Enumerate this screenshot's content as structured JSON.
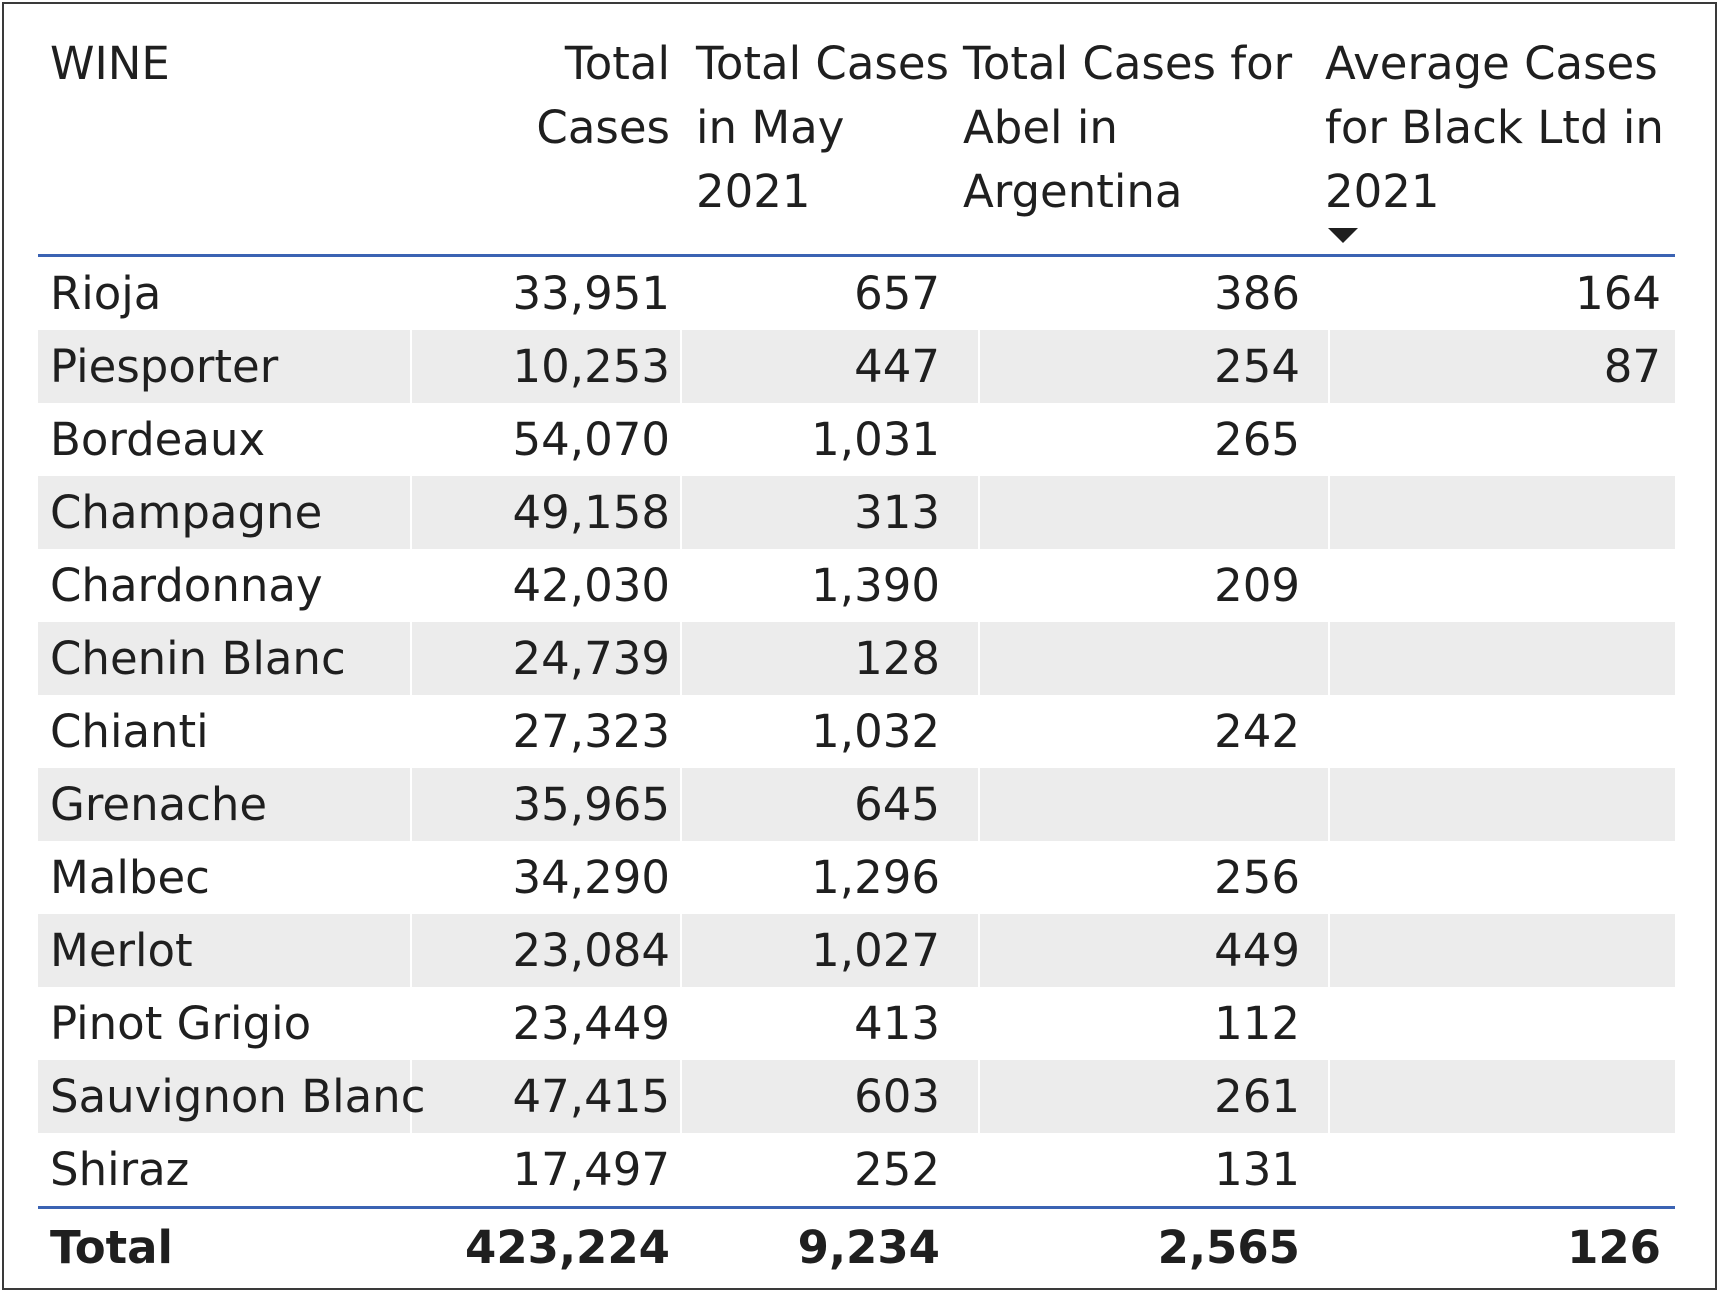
{
  "table": {
    "headers": [
      [
        "WINE"
      ],
      [
        "Total Cases"
      ],
      [
        "Total Cases",
        "in May",
        "2021"
      ],
      [
        "Total Cases for",
        "Abel in",
        "Argentina"
      ],
      [
        "Average Cases",
        "for Black Ltd in",
        "2021"
      ]
    ],
    "sorted_column": "Average Cases for Black Ltd in 2021",
    "sort_direction": "descending",
    "rows": [
      [
        "Rioja",
        "33,951",
        "657",
        "386",
        "164"
      ],
      [
        "Piesporter",
        "10,253",
        "447",
        "254",
        "87"
      ],
      [
        "Bordeaux",
        "54,070",
        "1,031",
        "265",
        ""
      ],
      [
        "Champagne",
        "49,158",
        "313",
        "",
        ""
      ],
      [
        "Chardonnay",
        "42,030",
        "1,390",
        "209",
        ""
      ],
      [
        "Chenin Blanc",
        "24,739",
        "128",
        "",
        ""
      ],
      [
        "Chianti",
        "27,323",
        "1,032",
        "242",
        ""
      ],
      [
        "Grenache",
        "35,965",
        "645",
        "",
        ""
      ],
      [
        "Malbec",
        "34,290",
        "1,296",
        "256",
        ""
      ],
      [
        "Merlot",
        "23,084",
        "1,027",
        "449",
        ""
      ],
      [
        "Pinot Grigio",
        "23,449",
        "413",
        "112",
        ""
      ],
      [
        "Sauvignon Blanc",
        "47,415",
        "603",
        "261",
        ""
      ],
      [
        "Shiraz",
        "17,497",
        "252",
        "131",
        ""
      ]
    ],
    "total": [
      "Total",
      "423,224",
      "9,234",
      "2,565",
      "126"
    ]
  },
  "colors": {
    "accent_line": "#3b63b3",
    "row_shade": "#ececec",
    "text": "#1f1f1f"
  }
}
